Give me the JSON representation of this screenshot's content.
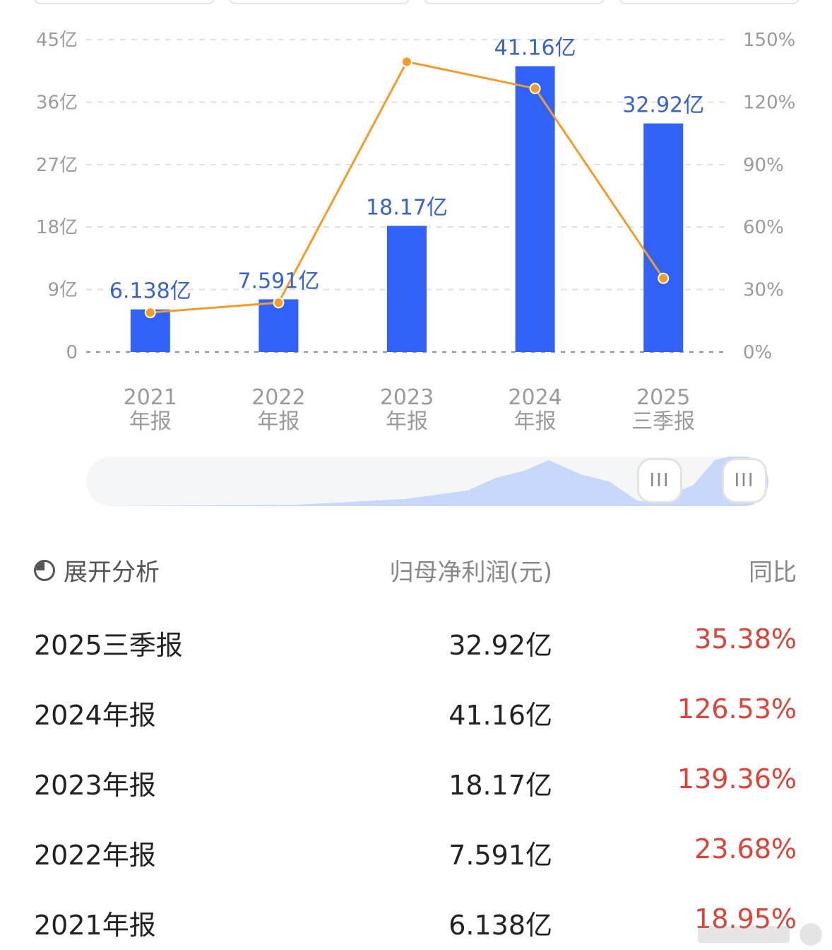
{
  "chart_data": {
    "type": "bar",
    "categories": [
      [
        "2021",
        "年报"
      ],
      [
        "2022",
        "年报"
      ],
      [
        "2023",
        "年报"
      ],
      [
        "2024",
        "年报"
      ],
      [
        "2025",
        "三季报"
      ]
    ],
    "values": [
      6.138,
      7.591,
      18.17,
      41.16,
      32.92
    ],
    "bar_labels": [
      "6.138亿",
      "7.591亿",
      "18.17亿",
      "41.16亿",
      "32.92亿"
    ],
    "line_series": {
      "values": [
        18.95,
        23.68,
        139.36,
        126.53,
        35.38
      ]
    },
    "y_left": {
      "ticks": [
        "0",
        "9亿",
        "18亿",
        "27亿",
        "36亿",
        "45亿"
      ],
      "ylim": [
        0,
        45
      ]
    },
    "y_right": {
      "ticks": [
        "0%",
        "30%",
        "60%",
        "90%",
        "120%",
        "150%"
      ],
      "ylim": [
        0,
        150
      ]
    },
    "grid": true,
    "colors": {
      "bar": "#2f62f5",
      "line": "#f39c2e",
      "label": "#3a63c8"
    }
  },
  "table": {
    "expand_label": "展开分析",
    "col_value": "归母净利润(元)",
    "col_yoy": "同比",
    "rows": [
      {
        "period": "2025三季报",
        "value": "32.92亿",
        "yoy": "35.38%"
      },
      {
        "period": "2024年报",
        "value": "41.16亿",
        "yoy": "126.53%"
      },
      {
        "period": "2023年报",
        "value": "18.17亿",
        "yoy": "139.36%"
      },
      {
        "period": "2022年报",
        "value": "7.591亿",
        "yoy": "23.68%"
      },
      {
        "period": "2021年报",
        "value": "6.138亿",
        "yoy": "18.95%"
      }
    ]
  },
  "slider": {
    "handle_left": "III",
    "handle_right": "III"
  }
}
